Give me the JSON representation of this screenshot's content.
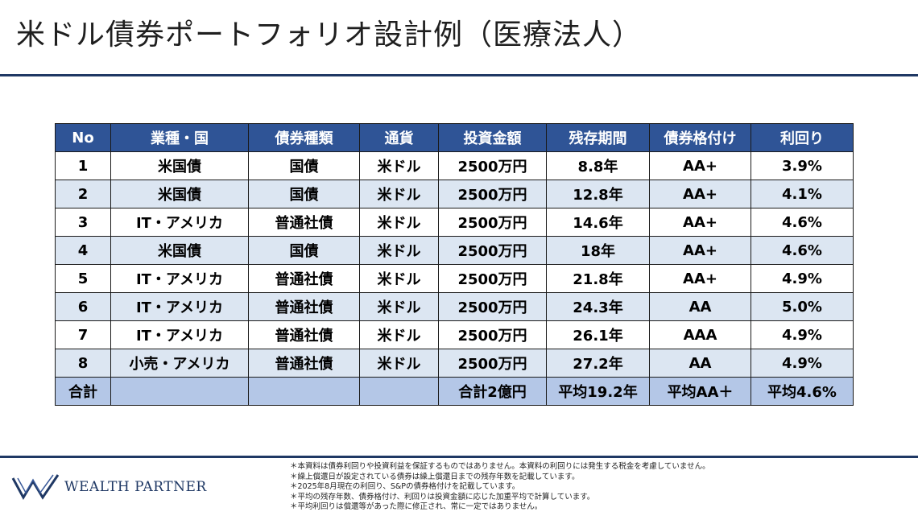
{
  "title": "米ドル債券ポートフォリオ設計例（医療法人）",
  "table": {
    "headers": [
      "No",
      "業種・国",
      "債券種類",
      "通貨",
      "投資金額",
      "残存期間",
      "債券格付け",
      "利回り"
    ],
    "rows": [
      [
        "1",
        "米国債",
        "国債",
        "米ドル",
        "2500万円",
        "8.8年",
        "AA+",
        "3.9%"
      ],
      [
        "2",
        "米国債",
        "国債",
        "米ドル",
        "2500万円",
        "12.8年",
        "AA+",
        "4.1%"
      ],
      [
        "3",
        "IT・アメリカ",
        "普通社債",
        "米ドル",
        "2500万円",
        "14.6年",
        "AA+",
        "4.6%"
      ],
      [
        "4",
        "米国債",
        "国債",
        "米ドル",
        "2500万円",
        "18年",
        "AA+",
        "4.6%"
      ],
      [
        "5",
        "IT・アメリカ",
        "普通社債",
        "米ドル",
        "2500万円",
        "21.8年",
        "AA+",
        "4.9%"
      ],
      [
        "6",
        "IT・アメリカ",
        "普通社債",
        "米ドル",
        "2500万円",
        "24.3年",
        "AA",
        "5.0%"
      ],
      [
        "7",
        "IT・アメリカ",
        "普通社債",
        "米ドル",
        "2500万円",
        "26.1年",
        "AAA",
        "4.9%"
      ],
      [
        "8",
        "小売・アメリカ",
        "普通社債",
        "米ドル",
        "2500万円",
        "27.2年",
        "AA",
        "4.9%"
      ]
    ],
    "total": [
      "合計",
      "",
      "",
      "",
      "合計2億円",
      "平均19.2年",
      "平均AA＋",
      "平均4.6%"
    ]
  },
  "footer": {
    "company": "WEALTH PARTNER",
    "notes": [
      "＊本資料は債券利回りや投資利益を保証するものではありません。本資料の利回りには発生する税金を考慮していません。",
      "＊繰上償還日が設定されている債券は繰上償還日までの残存年数を記載しています。",
      "＊2025年8月現在の利回り、S&Pの債券格付けを記載しています。",
      "＊平均の残存年数、債券格付け、利回りは投資金額に応じた加重平均で計算しています。",
      "＊平均利回りは償還等があった際に修正され、常に一定ではありません。"
    ]
  },
  "colors": {
    "header_bg": "#2f5496",
    "row_alt_bg": "#dce6f2",
    "total_bg": "#b4c7e7",
    "rule": "#1f3864"
  },
  "icons": {
    "logo": "wealth-partner-w-logo-icon"
  }
}
